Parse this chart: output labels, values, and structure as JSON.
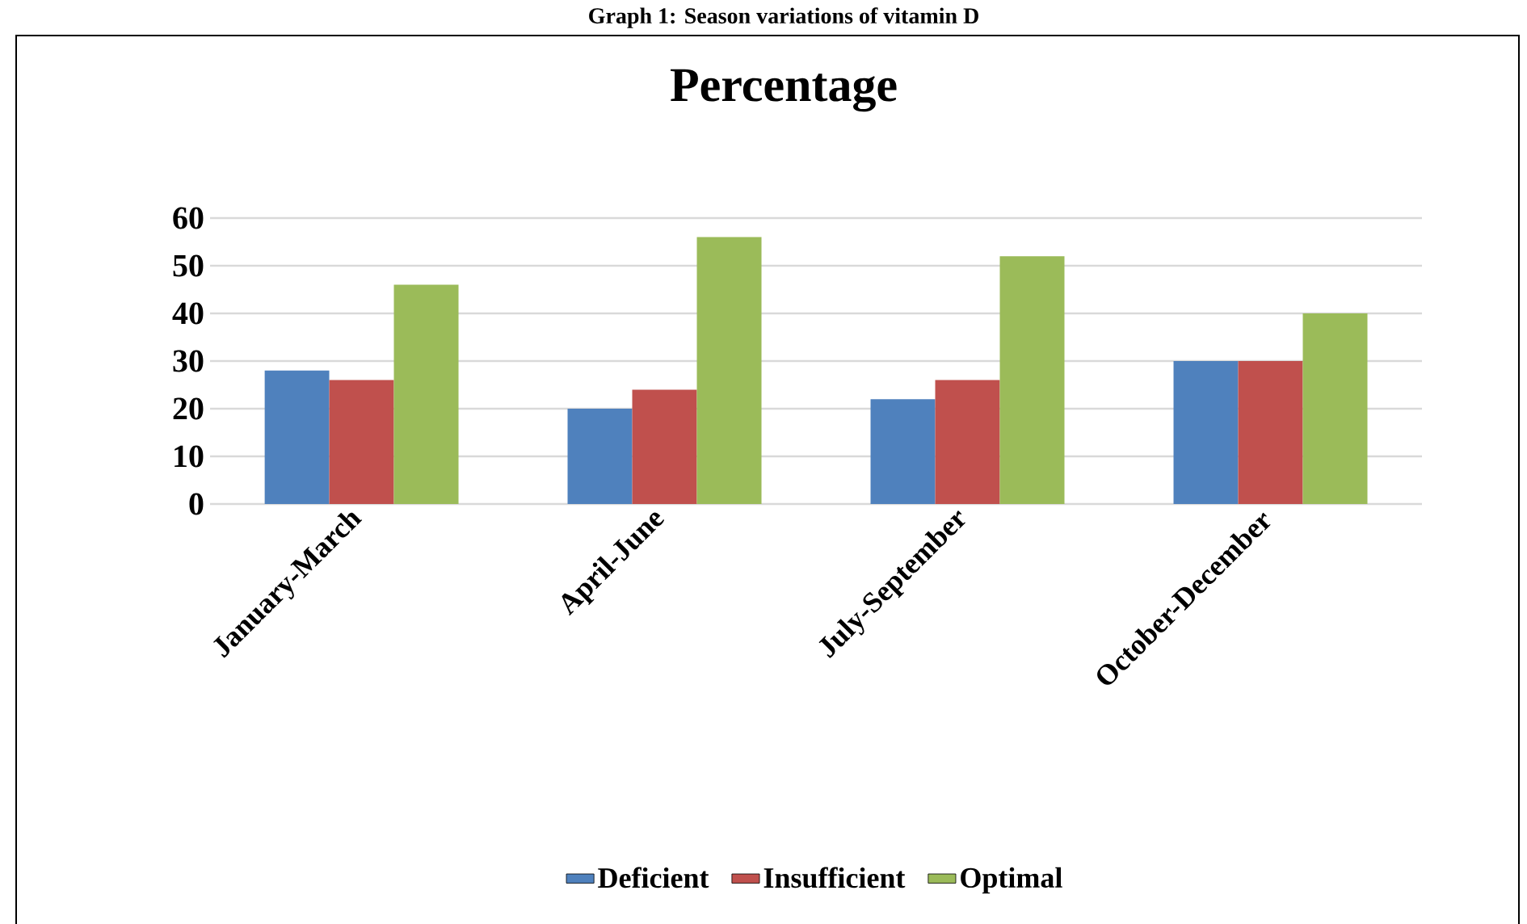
{
  "chart_data": {
    "type": "bar",
    "title": "Percentage",
    "annotations": [
      "Graph 1: Season variations of vitamin D"
    ],
    "categories": [
      "January-March",
      "April-June",
      "July-September",
      "October-December"
    ],
    "series": [
      {
        "name": "Deficient",
        "color": "#4f81bd",
        "values": [
          28,
          20,
          22,
          30
        ]
      },
      {
        "name": "Insufficient",
        "color": "#c0504d",
        "values": [
          26,
          24,
          26,
          30
        ]
      },
      {
        "name": "Optimal",
        "color": "#9bbb59",
        "values": [
          46,
          56,
          52,
          40
        ]
      }
    ],
    "ylim": [
      0,
      60
    ],
    "yticks": [
      0,
      10,
      20,
      30,
      40,
      50,
      60
    ],
    "grid": "y",
    "legend": "bottom"
  }
}
